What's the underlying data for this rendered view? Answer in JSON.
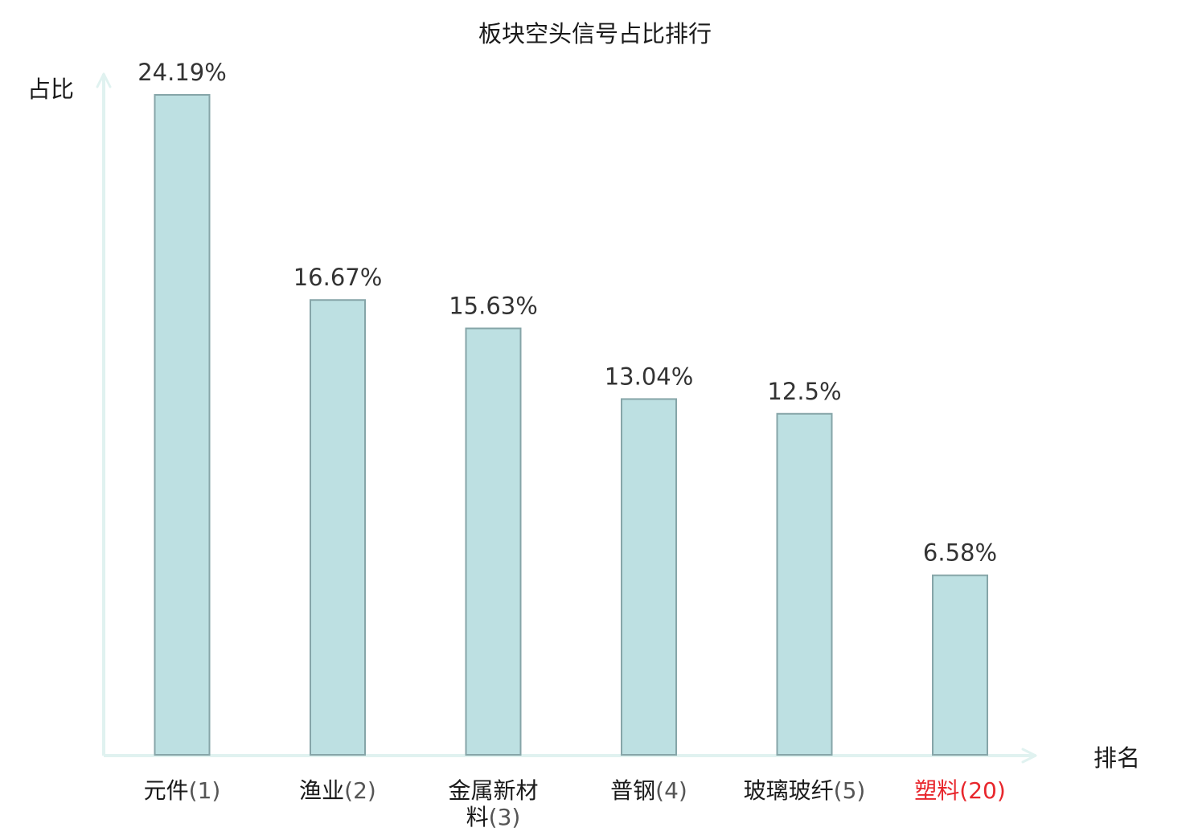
{
  "chart_data": {
    "type": "bar",
    "title": "板块空头信号占比排行",
    "xlabel": "排名",
    "ylabel": "占比",
    "categories": [
      {
        "name": "元件",
        "rank": "(1)",
        "highlight": false
      },
      {
        "name": "渔业",
        "rank": "(2)",
        "highlight": false
      },
      {
        "name": "金属新材料",
        "rank": "(3)",
        "highlight": false
      },
      {
        "name": "普钢",
        "rank": "(4)",
        "highlight": false
      },
      {
        "name": "玻璃玻纤",
        "rank": "(5)",
        "highlight": false
      },
      {
        "name": "塑料",
        "rank": "(20)",
        "highlight": true
      }
    ],
    "values": [
      24.19,
      16.67,
      15.63,
      13.04,
      12.5,
      6.58
    ],
    "value_labels": [
      "24.19%",
      "16.67%",
      "15.63%",
      "13.04%",
      "12.5%",
      "6.58%"
    ],
    "ylim": [
      0,
      24.19
    ],
    "grid": false,
    "colors": {
      "bar_fill": "#bde0e2",
      "bar_stroke": "#86a5a8",
      "axis": "#e0f2f0",
      "highlight": "#e8262c",
      "text": "#1a1a1a",
      "value_text": "#333333",
      "rank_text": "#555555"
    }
  }
}
